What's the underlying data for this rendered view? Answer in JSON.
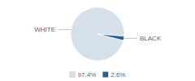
{
  "chart_data": {
    "type": "pie",
    "categories": [
      "WHITE",
      "BLACK"
    ],
    "values": [
      97.4,
      2.6
    ],
    "value_labels": [
      "97.4%",
      "2.6%"
    ],
    "colors": [
      "#d6e0ea",
      "#2d5f8a"
    ],
    "legend": "bottom"
  }
}
